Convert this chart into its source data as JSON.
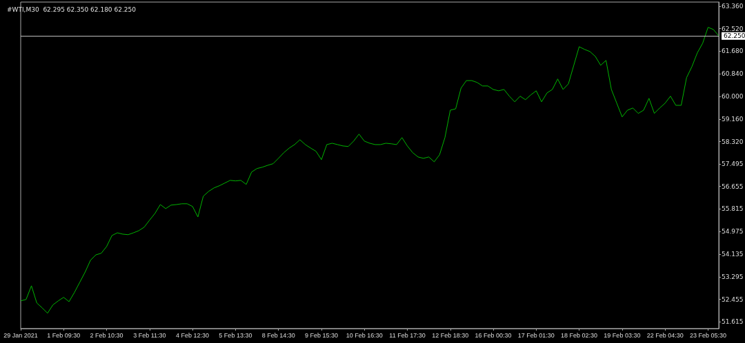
{
  "chart_data": {
    "type": "line",
    "title": "#WTI,M30  62.295 62.350 62.180 62.250",
    "categories": [
      "29 Jan 2021",
      null,
      null,
      null,
      null,
      null,
      null,
      null,
      "1 Feb 09:30",
      null,
      null,
      null,
      null,
      null,
      null,
      null,
      "2 Feb 10:30",
      null,
      null,
      null,
      null,
      null,
      null,
      null,
      "3 Feb 11:30",
      null,
      null,
      null,
      null,
      null,
      null,
      null,
      "4 Feb 12:30",
      null,
      null,
      null,
      null,
      null,
      null,
      null,
      "5 Feb 13:30",
      null,
      null,
      null,
      null,
      null,
      null,
      null,
      "8 Feb 14:30",
      null,
      null,
      null,
      null,
      null,
      null,
      null,
      "9 Feb 15:30",
      null,
      null,
      null,
      null,
      null,
      null,
      null,
      "10 Feb 16:30",
      null,
      null,
      null,
      null,
      null,
      null,
      null,
      "11 Feb 17:30",
      null,
      null,
      null,
      null,
      null,
      null,
      null,
      "12 Feb 18:30",
      null,
      null,
      null,
      null,
      null,
      null,
      null,
      "16 Feb 00:30",
      null,
      null,
      null,
      null,
      null,
      null,
      null,
      "17 Feb 01:30",
      null,
      null,
      null,
      null,
      null,
      null,
      null,
      "18 Feb 02:30",
      null,
      null,
      null,
      null,
      null,
      null,
      null,
      "19 Feb 03:30",
      null,
      null,
      null,
      null,
      null,
      null,
      null,
      "22 Feb 04:30",
      null,
      null,
      null,
      null,
      null,
      null,
      null,
      "23 Feb 05:30",
      null,
      null
    ],
    "series": [
      {
        "color": "#00b400",
        "values": [
          52.4,
          52.45,
          52.96,
          52.32,
          52.14,
          51.94,
          52.25,
          52.4,
          52.53,
          52.37,
          52.71,
          53.09,
          53.47,
          53.91,
          54.11,
          54.17,
          54.42,
          54.83,
          54.93,
          54.88,
          54.86,
          54.93,
          55.01,
          55.14,
          55.4,
          55.65,
          55.98,
          55.83,
          55.96,
          55.98,
          56.01,
          56.01,
          55.91,
          55.52,
          56.29,
          56.47,
          56.6,
          56.68,
          56.78,
          56.88,
          56.86,
          56.88,
          56.73,
          57.19,
          57.32,
          57.37,
          57.44,
          57.5,
          57.7,
          57.91,
          58.08,
          58.21,
          58.39,
          58.21,
          58.08,
          57.96,
          57.65,
          58.21,
          58.26,
          58.21,
          58.16,
          58.14,
          58.34,
          58.6,
          58.34,
          58.26,
          58.21,
          58.21,
          58.26,
          58.24,
          58.21,
          58.47,
          58.16,
          57.91,
          57.75,
          57.7,
          57.75,
          57.57,
          57.83,
          58.47,
          59.49,
          59.54,
          60.31,
          60.59,
          60.59,
          60.52,
          60.39,
          60.39,
          60.26,
          60.21,
          60.26,
          60.01,
          59.8,
          60.01,
          59.88,
          60.06,
          60.21,
          59.8,
          60.13,
          60.26,
          60.65,
          60.26,
          60.47,
          61.16,
          61.85,
          61.75,
          61.67,
          61.49,
          61.16,
          61.34,
          60.26,
          59.75,
          59.24,
          59.49,
          59.57,
          59.37,
          59.49,
          59.93,
          59.37,
          59.57,
          59.75,
          60.01,
          59.67,
          59.67,
          60.7,
          61.11,
          61.62,
          61.98,
          62.57,
          62.49,
          62.25
        ]
      }
    ],
    "ylim": [
      51.37,
      63.51
    ],
    "yticks": [
      {
        "value": 51.615,
        "label": "51.615"
      },
      {
        "value": 52.455,
        "label": "52.455"
      },
      {
        "value": 53.295,
        "label": "53.295"
      },
      {
        "value": 54.135,
        "label": "54.135"
      },
      {
        "value": 54.975,
        "label": "54.975"
      },
      {
        "value": 55.815,
        "label": "55.815"
      },
      {
        "value": 56.655,
        "label": "56.655"
      },
      {
        "value": 57.495,
        "label": "57.495"
      },
      {
        "value": 58.32,
        "label": "58.320"
      },
      {
        "value": 59.16,
        "label": "59.160"
      },
      {
        "value": 60,
        "label": "60.000"
      },
      {
        "value": 60.84,
        "label": "60.840"
      },
      {
        "value": 61.68,
        "label": "61.680"
      },
      {
        "value": 62.52,
        "label": "62.520"
      },
      {
        "value": 63.36,
        "label": "63.360"
      }
    ],
    "ref_lines": [
      {
        "axis": "y",
        "value": 62.25,
        "label": "62.250",
        "color": "#c0c0c0"
      }
    ],
    "grid": false,
    "marker": "none",
    "line_style": "solid"
  }
}
